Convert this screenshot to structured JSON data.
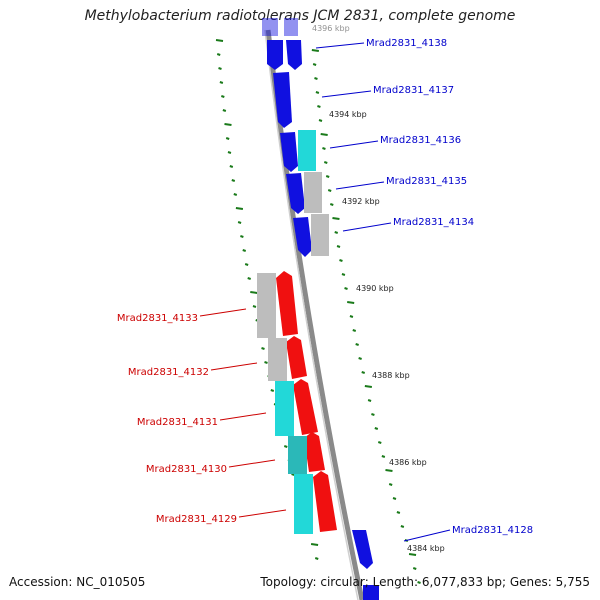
{
  "title": "Methylobacterium radiotolerans JCM 2831, complete genome",
  "footer": {
    "accession": "Accession: NC_010505",
    "summary": "Topology: circular; Length: 6,077,833 bp; Genes: 5,755"
  },
  "colors": {
    "forward_gene": "#1010e0",
    "reverse_gene": "#f01010",
    "cds_cyan": "#22d8d8",
    "cds_gray": "#bdbdbd",
    "backbone": "#8a8a8a",
    "tick": "#1a7a1a",
    "forward_label": "#0000cc",
    "reverse_label": "#cc0000"
  },
  "forward_genes": [
    {
      "label": "Mrad2831_4138"
    },
    {
      "label": "Mrad2831_4137"
    },
    {
      "label": "Mrad2831_4136"
    },
    {
      "label": "Mrad2831_4135"
    },
    {
      "label": "Mrad2831_4134"
    },
    {
      "label": "Mrad2831_4128"
    }
  ],
  "reverse_genes": [
    {
      "label": "Mrad2831_4133"
    },
    {
      "label": "Mrad2831_4132"
    },
    {
      "label": "Mrad2831_4131"
    },
    {
      "label": "Mrad2831_4130"
    },
    {
      "label": "Mrad2831_4129"
    }
  ],
  "ruler": [
    "4396 kbp",
    "4394 kbp",
    "4392 kbp",
    "4390 kbp",
    "4388 kbp",
    "4386 kbp",
    "4384 kbp"
  ]
}
